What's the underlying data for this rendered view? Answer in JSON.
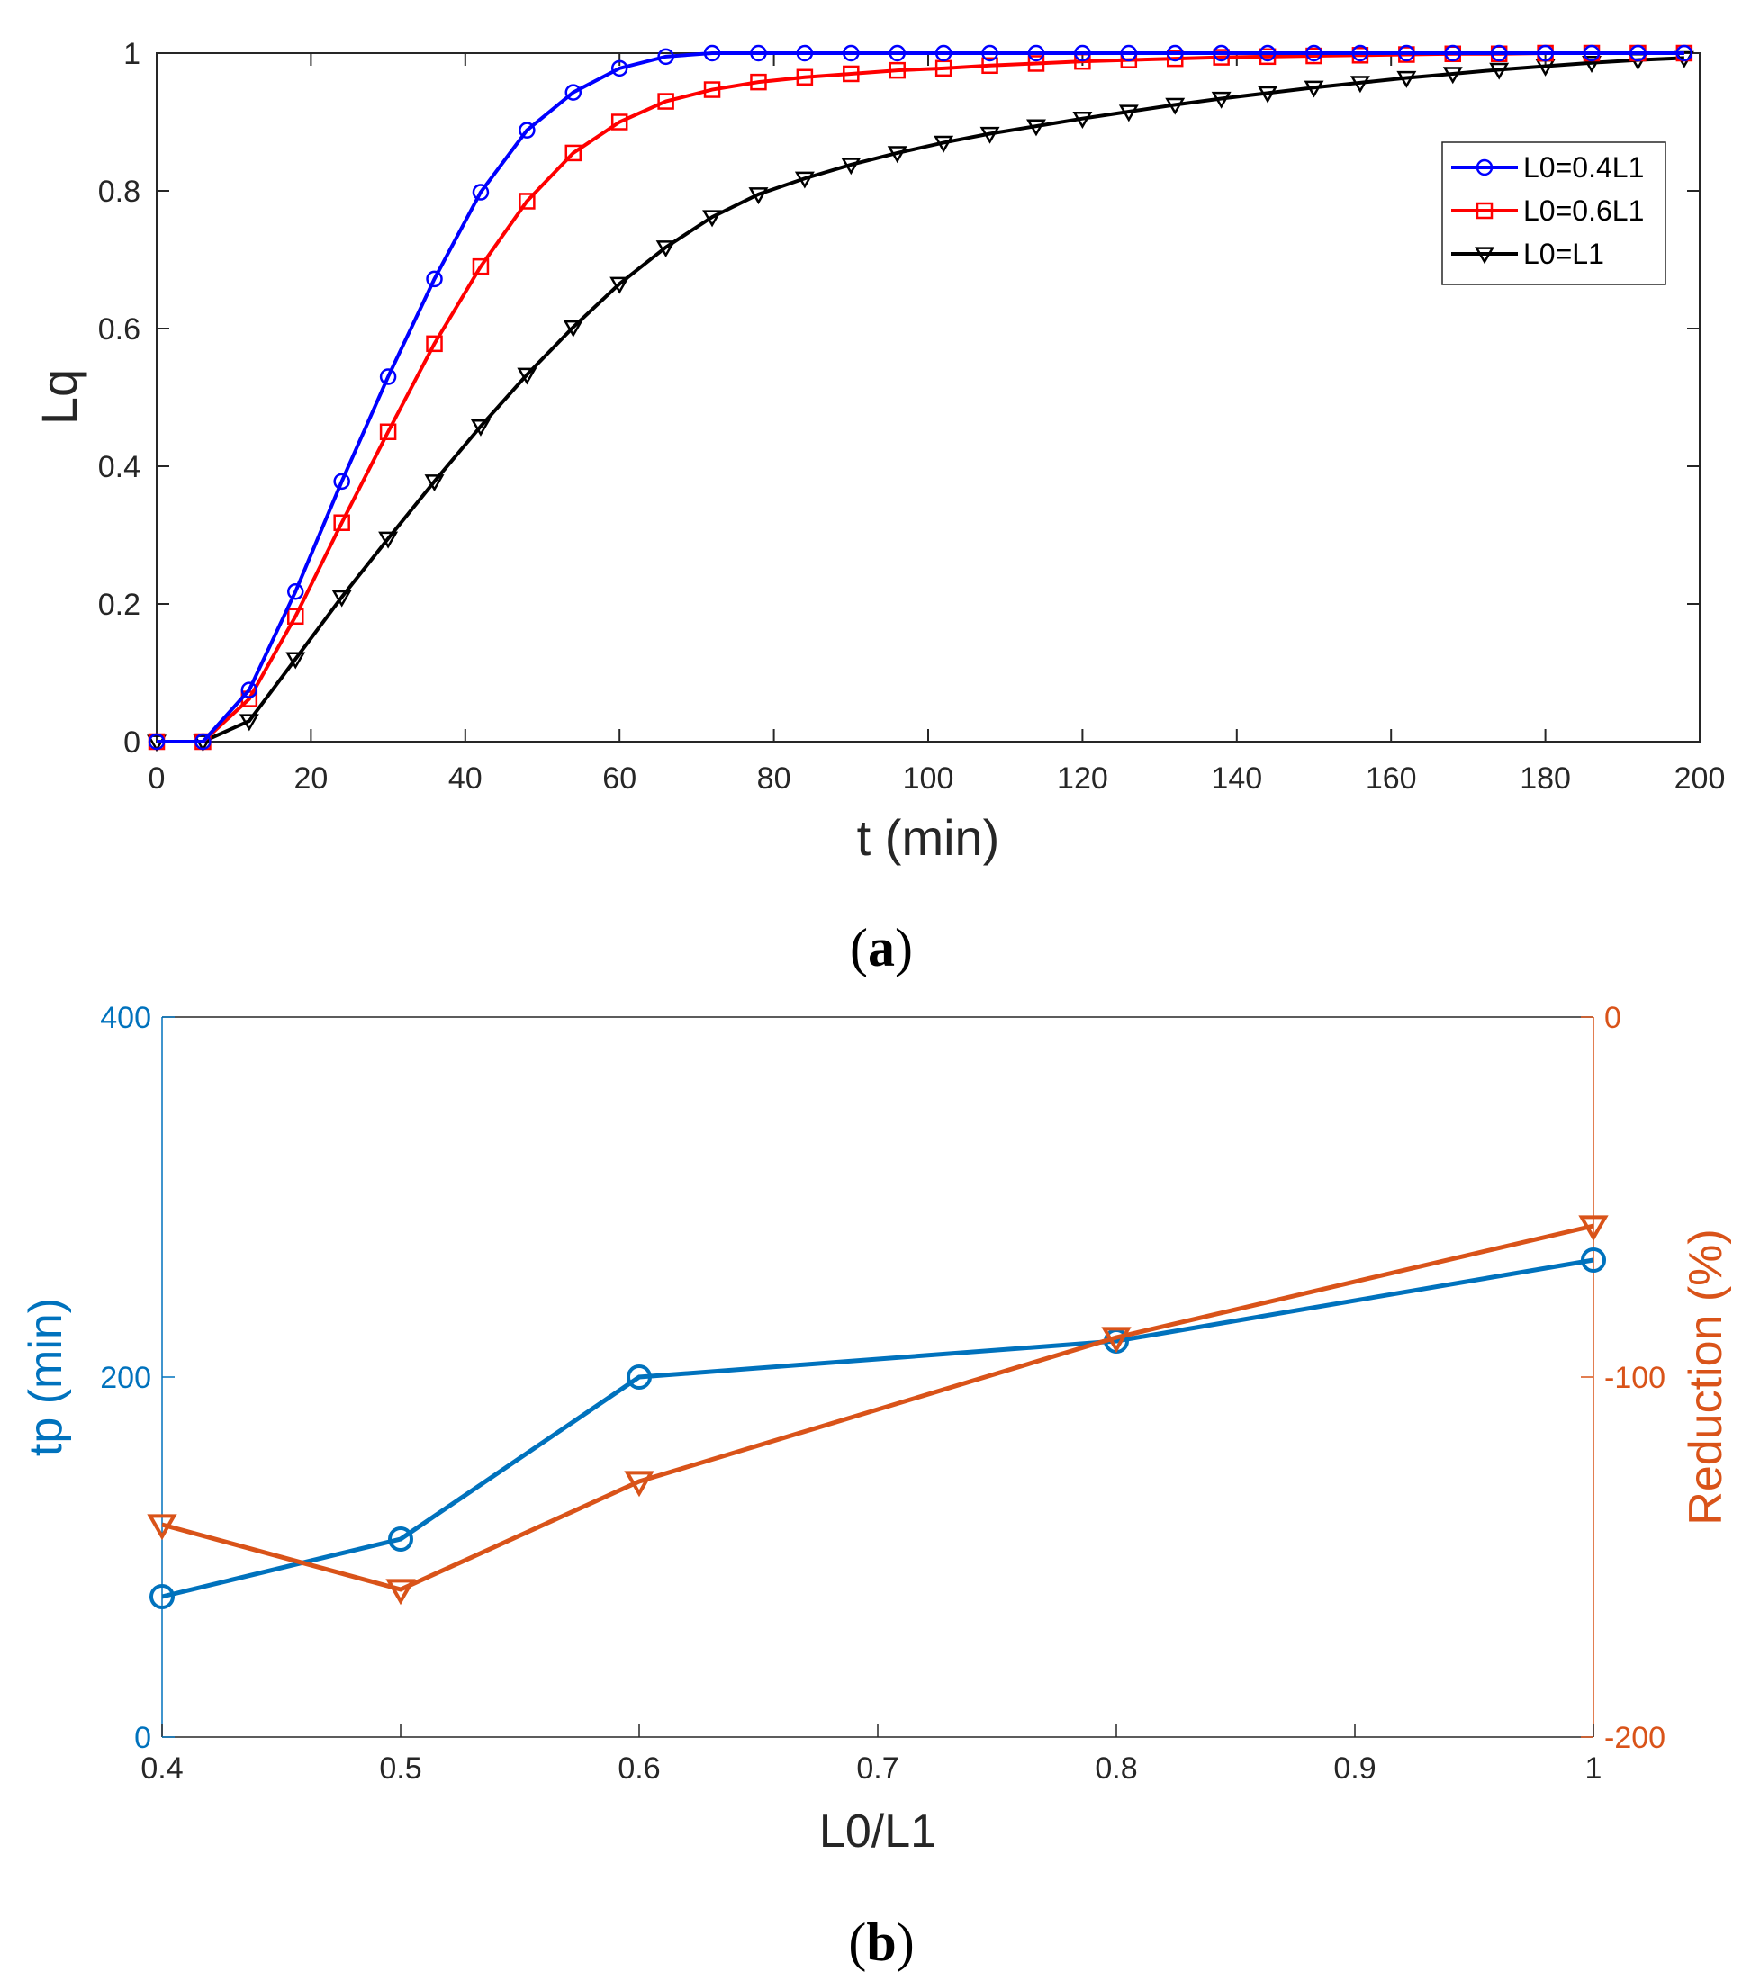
{
  "chart_data": [
    {
      "panel": "(a)",
      "type": "line",
      "xlabel": "t (min)",
      "ylabel": "Lq",
      "xlim": [
        0,
        200
      ],
      "ylim": [
        0,
        1
      ],
      "xticks": [
        "0",
        "20",
        "40",
        "60",
        "80",
        "100",
        "120",
        "140",
        "160",
        "180",
        "200"
      ],
      "yticks": [
        "0",
        "0.2",
        "0.4",
        "0.6",
        "0.8",
        "1"
      ],
      "grid": false,
      "legend_position": "top-right",
      "x": [
        0,
        6,
        12,
        18,
        24,
        30,
        36,
        42,
        48,
        54,
        60,
        66,
        72,
        78,
        84,
        90,
        96,
        102,
        108,
        114,
        120,
        126,
        132,
        138,
        144,
        150,
        156,
        162,
        168,
        174,
        180,
        186,
        192,
        198
      ],
      "series": [
        {
          "name": "L0=0.4L1",
          "color": "#0000ff",
          "marker": "circle",
          "values": [
            0,
            0,
            0.075,
            0.218,
            0.378,
            0.53,
            0.672,
            0.798,
            0.888,
            0.943,
            0.978,
            0.995,
            1.0,
            1.0,
            1.0,
            1.0,
            1.0,
            1.0,
            1.0,
            1.0,
            1.0,
            1.0,
            1.0,
            1.0,
            1.0,
            1.0,
            1.0,
            1.0,
            1.0,
            1.0,
            1.0,
            1.0,
            1.0,
            1.0
          ]
        },
        {
          "name": "L0=0.6L1",
          "color": "#ff0000",
          "marker": "square",
          "values": [
            0,
            0,
            0.062,
            0.182,
            0.318,
            0.45,
            0.578,
            0.69,
            0.785,
            0.855,
            0.9,
            0.93,
            0.947,
            0.958,
            0.965,
            0.97,
            0.975,
            0.978,
            0.982,
            0.985,
            0.988,
            0.99,
            0.992,
            0.994,
            0.995,
            0.996,
            0.997,
            0.998,
            0.999,
            0.999,
            1.0,
            1.0,
            1.0,
            1.0
          ]
        },
        {
          "name": "L0=L1",
          "color": "#000000",
          "marker": "triangle-down",
          "values": [
            0,
            0,
            0.03,
            0.12,
            0.21,
            0.295,
            0.378,
            0.458,
            0.533,
            0.602,
            0.665,
            0.718,
            0.762,
            0.795,
            0.818,
            0.838,
            0.855,
            0.87,
            0.883,
            0.894,
            0.905,
            0.915,
            0.925,
            0.934,
            0.942,
            0.95,
            0.957,
            0.964,
            0.97,
            0.976,
            0.981,
            0.986,
            0.99,
            0.993
          ]
        }
      ]
    },
    {
      "panel": "(b)",
      "type": "line",
      "xlabel": "L0/L1",
      "ylabel": "tp (min)",
      "ylabel_right": "Reduction (%)",
      "xlim": [
        0.4,
        1
      ],
      "ylim": [
        0,
        400
      ],
      "ylim_right": [
        -200,
        0
      ],
      "xticks": [
        "0.4",
        "0.5",
        "0.6",
        "0.7",
        "0.8",
        "0.9",
        "1"
      ],
      "yticks": [
        "0",
        "200",
        "400"
      ],
      "yticks_right": [
        "-200",
        "-100",
        "0"
      ],
      "grid": false,
      "x": [
        0.4,
        0.5,
        0.6,
        0.8,
        1.0
      ],
      "series": [
        {
          "axis": "left",
          "color": "#0072bd",
          "marker": "circle",
          "values": [
            78,
            110,
            200,
            220,
            265
          ]
        },
        {
          "axis": "right",
          "color": "#d95319",
          "marker": "triangle-down",
          "values": [
            -141,
            -159,
            -129,
            -89,
            -58
          ]
        }
      ]
    }
  ]
}
